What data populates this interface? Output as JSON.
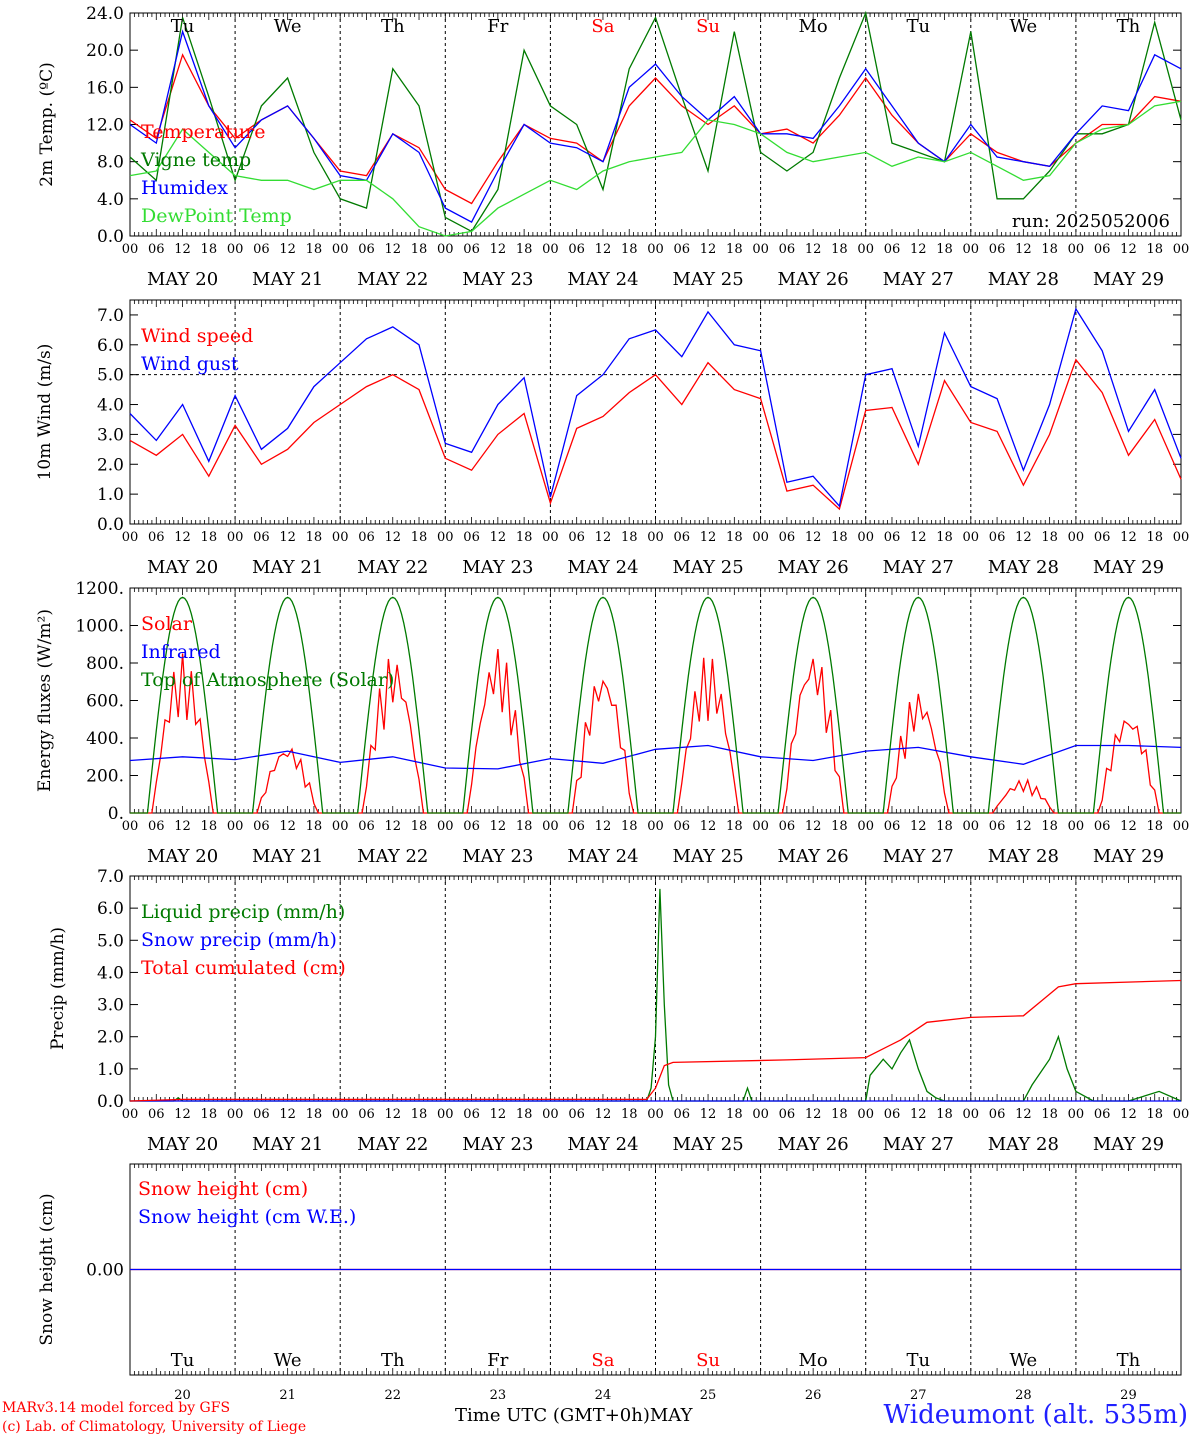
{
  "colors": {
    "red": "#ff0000",
    "blue": "#0000ff",
    "green": "#007a00",
    "light_green": "#33dd33",
    "axis": "#000000"
  },
  "days": [
    "Tu",
    "We",
    "Th",
    "Fr",
    "Sa",
    "Su",
    "Mo",
    "Tu",
    "We",
    "Th"
  ],
  "day_colors": [
    "#000000",
    "#000000",
    "#000000",
    "#000000",
    "#ff0000",
    "#ff0000",
    "#000000",
    "#000000",
    "#000000",
    "#000000"
  ],
  "dates": [
    "MAY 20",
    "MAY 21",
    "MAY 22",
    "MAY 23",
    "MAY 24",
    "MAY 25",
    "MAY 26",
    "MAY 27",
    "MAY 28",
    "MAY 29"
  ],
  "day_numbers": [
    "20",
    "21",
    "22",
    "23",
    "24",
    "25",
    "26",
    "27",
    "28",
    "29"
  ],
  "hour_ticks": [
    "00",
    "06",
    "12",
    "18"
  ],
  "hour_tick_end": "00",
  "x_axis_title": "Time UTC (GMT+0h)",
  "month_label": "MAY",
  "credits": [
    "MARv3.14 model forced by GFS",
    "(c) Lab. of Climatology, University of Liege"
  ],
  "station": "Wideumont (alt. 535m)",
  "chart_data": [
    {
      "type": "line",
      "ylabel": "2m Temp. (ºC)",
      "ylim": [
        0,
        24
      ],
      "yticks": [
        "0.0",
        "4.0",
        "8.0",
        "12.0",
        "16.0",
        "20.0",
        "24.0"
      ],
      "annotation": "run: 2025052006",
      "reference_line": 0,
      "x_unit": "hours since May 20 00 UTC",
      "series": [
        {
          "name": "Temperature",
          "color": "#ff0000",
          "x": [
            0,
            6,
            12,
            18,
            24,
            30,
            36,
            42,
            48,
            54,
            60,
            66,
            72,
            78,
            84,
            90,
            96,
            102,
            108,
            114,
            120,
            126,
            132,
            138,
            144,
            150,
            156,
            162,
            168,
            174,
            180,
            186,
            192,
            198,
            204,
            210,
            216,
            222,
            228,
            234,
            240
          ],
          "values": [
            12.5,
            10.5,
            19.5,
            14,
            10.5,
            12.5,
            14,
            10.5,
            7,
            6.5,
            11,
            9.5,
            5,
            3.5,
            8,
            12,
            10.5,
            10,
            8,
            14,
            17,
            14,
            12,
            14,
            11,
            11.5,
            10,
            13,
            17,
            13,
            10,
            8,
            11,
            9,
            8,
            7.5,
            10,
            12,
            12,
            15,
            14.5
          ]
        },
        {
          "name": "Vigne temp",
          "color": "#007a00",
          "x": [
            0,
            6,
            12,
            18,
            24,
            30,
            36,
            42,
            48,
            54,
            60,
            66,
            72,
            78,
            84,
            90,
            96,
            102,
            108,
            114,
            120,
            126,
            132,
            138,
            144,
            150,
            156,
            162,
            168,
            174,
            180,
            186,
            192,
            198,
            204,
            210,
            216,
            222,
            228,
            234,
            240
          ],
          "values": [
            8.5,
            6,
            23.5,
            15,
            6,
            14,
            17,
            9,
            4,
            3,
            18,
            14,
            2,
            0.5,
            5,
            20,
            14,
            12,
            5,
            18,
            23.5,
            15,
            7,
            22,
            9,
            7,
            9,
            17,
            24,
            10,
            9,
            8,
            22,
            4,
            4,
            7,
            11,
            11,
            12,
            23,
            12.5
          ]
        },
        {
          "name": "Humidex",
          "color": "#0000ff",
          "x": [
            0,
            6,
            12,
            18,
            24,
            30,
            36,
            42,
            48,
            54,
            60,
            66,
            72,
            78,
            84,
            90,
            96,
            102,
            108,
            114,
            120,
            126,
            132,
            138,
            144,
            150,
            156,
            162,
            168,
            174,
            180,
            186,
            192,
            198,
            204,
            210,
            216,
            222,
            228,
            234,
            240
          ],
          "values": [
            12,
            10,
            22,
            14,
            9.5,
            12.5,
            14,
            10.5,
            6.5,
            6,
            11,
            9,
            3,
            1.5,
            7,
            12,
            10,
            9.5,
            8,
            16,
            18.5,
            15,
            12.5,
            15,
            11,
            11,
            10.5,
            14,
            18,
            14,
            10,
            8,
            12,
            8.5,
            8,
            7.5,
            11,
            14,
            13.5,
            19.5,
            18
          ]
        },
        {
          "name": "DewPoint Temp",
          "color": "#33dd33",
          "x": [
            0,
            6,
            12,
            18,
            24,
            30,
            36,
            42,
            48,
            54,
            60,
            66,
            72,
            78,
            84,
            90,
            96,
            102,
            108,
            114,
            120,
            126,
            132,
            138,
            144,
            150,
            156,
            162,
            168,
            174,
            180,
            186,
            192,
            198,
            204,
            210,
            216,
            222,
            228,
            234,
            240
          ],
          "values": [
            6.5,
            7,
            11.5,
            9,
            6.5,
            6,
            6,
            5,
            6,
            6,
            4,
            1,
            0,
            0.5,
            3,
            4.5,
            6,
            5,
            7,
            8,
            8.5,
            9,
            12.5,
            12,
            11,
            9,
            8,
            8.5,
            9,
            7.5,
            8.5,
            8,
            9,
            7.5,
            6,
            6.5,
            10,
            11.5,
            12,
            14,
            14.5
          ]
        }
      ]
    },
    {
      "type": "line",
      "ylabel": "10m Wind (m/s)",
      "ylim": [
        0,
        7.5
      ],
      "yticks": [
        "0.0",
        "1.0",
        "2.0",
        "3.0",
        "4.0",
        "5.0",
        "6.0",
        "7.0"
      ],
      "reference_line": 5.0,
      "x_unit": "hours since May 20 00 UTC",
      "series": [
        {
          "name": "Wind speed",
          "color": "#ff0000",
          "x": [
            0,
            6,
            12,
            18,
            24,
            30,
            36,
            42,
            48,
            54,
            60,
            66,
            72,
            78,
            84,
            90,
            96,
            102,
            108,
            114,
            120,
            126,
            132,
            138,
            144,
            150,
            156,
            162,
            168,
            174,
            180,
            186,
            192,
            198,
            204,
            210,
            216,
            222,
            228,
            234,
            240
          ],
          "values": [
            2.8,
            2.3,
            3.0,
            1.6,
            3.3,
            2.0,
            2.5,
            3.4,
            4.0,
            4.6,
            5.0,
            4.5,
            2.2,
            1.8,
            3.0,
            3.7,
            0.7,
            3.2,
            3.6,
            4.4,
            5.0,
            4.0,
            5.4,
            4.5,
            4.2,
            1.1,
            1.3,
            0.5,
            3.8,
            3.9,
            2.0,
            4.8,
            3.4,
            3.1,
            1.3,
            3.0,
            5.5,
            4.4,
            2.3,
            3.5,
            1.5
          ]
        },
        {
          "name": "Wind gust",
          "color": "#0000ff",
          "x": [
            0,
            6,
            12,
            18,
            24,
            30,
            36,
            42,
            48,
            54,
            60,
            66,
            72,
            78,
            84,
            90,
            96,
            102,
            108,
            114,
            120,
            126,
            132,
            138,
            144,
            150,
            156,
            162,
            168,
            174,
            180,
            186,
            192,
            198,
            204,
            210,
            216,
            222,
            228,
            234,
            240
          ],
          "values": [
            3.7,
            2.8,
            4.0,
            2.1,
            4.3,
            2.5,
            3.2,
            4.6,
            5.4,
            6.2,
            6.6,
            6.0,
            2.7,
            2.4,
            4.0,
            4.9,
            0.9,
            4.3,
            5.0,
            6.2,
            6.5,
            5.6,
            7.1,
            6.0,
            5.8,
            1.4,
            1.6,
            0.6,
            5.0,
            5.2,
            2.6,
            6.4,
            4.6,
            4.2,
            1.8,
            4.0,
            7.2,
            5.8,
            3.1,
            4.5,
            2.2
          ]
        }
      ]
    },
    {
      "type": "line",
      "ylabel": "Energy fluxes (W/m²)",
      "ylim": [
        0,
        1200
      ],
      "yticks": [
        "0.",
        "200.",
        "400.",
        "600.",
        "800.",
        "1000.",
        "1200."
      ],
      "x_unit": "hours since May 20 00 UTC",
      "series": [
        {
          "name": "Solar",
          "color": "#ff0000",
          "peaks": [
            850,
            370,
            850,
            890,
            780,
            850,
            880,
            660,
            180,
            550
          ]
        },
        {
          "name": "Infrared",
          "color": "#0000ff",
          "x": [
            0,
            12,
            24,
            36,
            48,
            60,
            72,
            84,
            96,
            108,
            120,
            132,
            144,
            156,
            168,
            180,
            192,
            204,
            216,
            228,
            240
          ],
          "values": [
            280,
            300,
            285,
            330,
            270,
            300,
            240,
            235,
            290,
            265,
            340,
            360,
            300,
            280,
            330,
            350,
            300,
            260,
            360,
            360,
            350
          ]
        },
        {
          "name": "Top of Atmosphere (Solar)",
          "color": "#007a00",
          "peak": 1150
        }
      ]
    },
    {
      "type": "line",
      "ylabel": "Precip (mm/h)",
      "ylim": [
        0,
        7
      ],
      "yticks": [
        "0.0",
        "1.0",
        "2.0",
        "3.0",
        "4.0",
        "5.0",
        "6.0",
        "7.0"
      ],
      "x_unit": "hours since May 20 00 UTC",
      "series": [
        {
          "name": "Liquid precip (mm/h)",
          "color": "#007a00",
          "x": [
            0,
            10,
            11,
            12,
            14,
            60,
            110,
            118,
            119,
            120,
            121,
            122,
            123,
            124,
            126,
            128,
            140,
            141,
            142,
            168,
            169,
            172,
            174,
            176,
            178,
            180,
            182,
            184,
            186,
            196,
            204,
            206,
            210,
            212,
            214,
            216,
            220,
            228,
            235,
            240
          ],
          "values": [
            0,
            0,
            0.1,
            0,
            0,
            0,
            0,
            0,
            0.4,
            2.0,
            6.6,
            3.0,
            0.5,
            0,
            0,
            0,
            0,
            0.4,
            0,
            0,
            0.8,
            1.3,
            1.0,
            1.5,
            1.9,
            1.0,
            0.3,
            0.1,
            0,
            0,
            0,
            0.5,
            1.3,
            2.0,
            1.0,
            0.3,
            0,
            0,
            0.3,
            0
          ]
        },
        {
          "name": "Snow precip (mm/h)",
          "color": "#0000ff",
          "x": [
            0,
            240
          ],
          "values": [
            0,
            0
          ]
        },
        {
          "name": "Total cumulated (cm)",
          "color": "#ff0000",
          "x": [
            0,
            12,
            118,
            120,
            122,
            124,
            150,
            168,
            176,
            182,
            192,
            204,
            208,
            212,
            216,
            240
          ],
          "values": [
            0,
            0.05,
            0.05,
            0.4,
            1.1,
            1.2,
            1.28,
            1.35,
            1.9,
            2.45,
            2.6,
            2.65,
            3.1,
            3.55,
            3.65,
            3.75
          ]
        }
      ]
    },
    {
      "type": "line",
      "ylabel": "Snow height (cm)",
      "yticks": [
        "0.00"
      ],
      "series": [
        {
          "name": "Snow height (cm)",
          "color": "#ff0000",
          "x": [
            0,
            240
          ],
          "values": [
            0,
            0
          ]
        },
        {
          "name": "Snow height (cm W.E.)",
          "color": "#0000ff",
          "x": [
            0,
            240
          ],
          "values": [
            0,
            0
          ]
        }
      ]
    }
  ]
}
